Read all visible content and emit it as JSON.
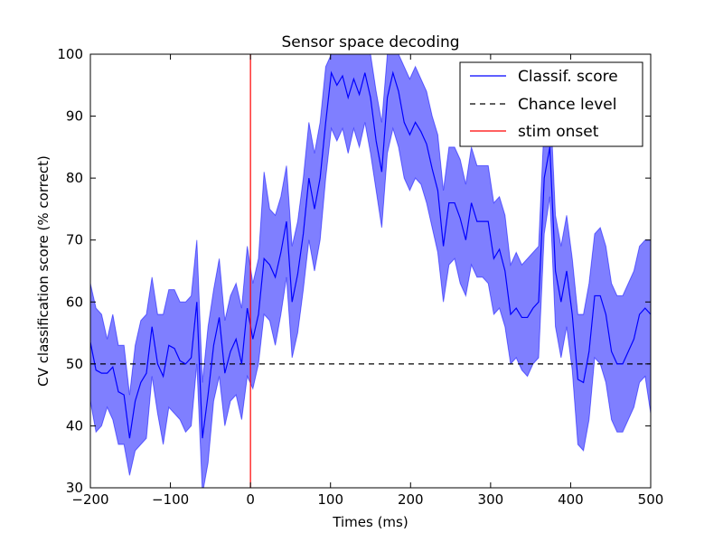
{
  "chart_data": {
    "type": "line",
    "title": "Sensor space decoding",
    "xlabel": "Times (ms)",
    "ylabel": "CV classification score (% correct)",
    "xlim": [
      -200,
      500
    ],
    "ylim": [
      30,
      100
    ],
    "xticks": [
      -200,
      -100,
      0,
      100,
      200,
      300,
      400,
      500
    ],
    "yticks": [
      30,
      40,
      50,
      60,
      70,
      80,
      90,
      100
    ],
    "xtick_labels": [
      "−200",
      "−100",
      "0",
      "100",
      "200",
      "300",
      "400",
      "500"
    ],
    "ytick_labels": [
      "30",
      "40",
      "50",
      "60",
      "70",
      "80",
      "90",
      "100"
    ],
    "grid": false,
    "legend_position": "top-right",
    "legend": [
      "Classif. score",
      "Chance level",
      "stim onset"
    ],
    "colors": {
      "score_line": "#0000ff",
      "band_fill": "#0000ff",
      "chance": "#000000",
      "stim": "#ff0000"
    },
    "series": [
      {
        "name": "Classif. score",
        "x": [
          -200,
          -193,
          -186,
          -179,
          -172,
          -165,
          -158,
          -151,
          -144,
          -137,
          -130,
          -123,
          -116,
          -109,
          -102,
          -95,
          -88,
          -81,
          -74,
          -67,
          -60,
          -53,
          -46,
          -39,
          -32,
          -25,
          -18,
          -11,
          -4,
          3,
          10,
          17,
          24,
          31,
          38,
          45,
          52,
          59,
          66,
          73,
          80,
          87,
          94,
          101,
          108,
          115,
          122,
          129,
          136,
          143,
          150,
          157,
          164,
          171,
          178,
          185,
          192,
          199,
          206,
          213,
          220,
          227,
          234,
          241,
          248,
          255,
          262,
          269,
          276,
          283,
          290,
          297,
          304,
          311,
          318,
          325,
          332,
          339,
          346,
          353,
          360,
          367,
          374,
          381,
          388,
          395,
          402,
          409,
          416,
          423,
          430,
          437,
          444,
          451,
          458,
          465,
          472,
          479,
          486,
          493,
          500
        ],
        "y": [
          53.5,
          49,
          48.5,
          48.5,
          49.5,
          45.5,
          45,
          38,
          44,
          47,
          48.5,
          56,
          50,
          48,
          53,
          52.5,
          50.5,
          50,
          51,
          60,
          38,
          45,
          53,
          57.5,
          48.5,
          52,
          54,
          50,
          59,
          54,
          58,
          67,
          66,
          64,
          68,
          73,
          60,
          64.5,
          71,
          80,
          75,
          80,
          89,
          97,
          95,
          96.5,
          93,
          96,
          93.5,
          97,
          93,
          86,
          81,
          93,
          97,
          94,
          89,
          87,
          89,
          87.5,
          85.5,
          81.5,
          78,
          69,
          76,
          76,
          73.5,
          70,
          76,
          73,
          73,
          73,
          67,
          68.5,
          65,
          58,
          59,
          57.5,
          57.5,
          59,
          60,
          80,
          85,
          65,
          60,
          65,
          58,
          47.5,
          47,
          52,
          61,
          61,
          58,
          52,
          50,
          50,
          52,
          54,
          58,
          59,
          58
        ]
      },
      {
        "name": "Chance level",
        "value": 50
      },
      {
        "name": "stim onset",
        "x": 0
      }
    ],
    "band": {
      "x_ref": "Classif. score",
      "lower": [
        44,
        39,
        40,
        43,
        41,
        37,
        37,
        32,
        36,
        37,
        38,
        48,
        42,
        37,
        43,
        42,
        41,
        39,
        40,
        50,
        29,
        34,
        44,
        48,
        40,
        44,
        45,
        41,
        48,
        46,
        50,
        58,
        57,
        53,
        58,
        64,
        51,
        55,
        62,
        70,
        65,
        70,
        80,
        88,
        86,
        88,
        84,
        88,
        85,
        89,
        84,
        78,
        72,
        84,
        88,
        85,
        80,
        78,
        80,
        79,
        76,
        72,
        68,
        60,
        66,
        67,
        63,
        61,
        66,
        64,
        64,
        63,
        58,
        59,
        56,
        50,
        51,
        49,
        48,
        50,
        51,
        71,
        77,
        56,
        51,
        56,
        49,
        37,
        36,
        41,
        51,
        50,
        47,
        41,
        39,
        39,
        41,
        43,
        47,
        48,
        42
      ],
      "upper": [
        63,
        59,
        58,
        54,
        58,
        53,
        53,
        45,
        53,
        57,
        58,
        64,
        58,
        58,
        62,
        62,
        60,
        60,
        61,
        70,
        47,
        56,
        62,
        67,
        57,
        61,
        63,
        59,
        69,
        63,
        67,
        81,
        75,
        74,
        77,
        82,
        69,
        73,
        80,
        89,
        84,
        89,
        98,
        100,
        100,
        100,
        100,
        100,
        100,
        100,
        100,
        94,
        89,
        100,
        100,
        100,
        98,
        96,
        98,
        96,
        94,
        90,
        87,
        78,
        85,
        85,
        83,
        79,
        85,
        82,
        82,
        82,
        76,
        77,
        74,
        66,
        68,
        66,
        67,
        68,
        69,
        89,
        94,
        74,
        69,
        74,
        67,
        58,
        58,
        63,
        71,
        72,
        69,
        63,
        61,
        61,
        63,
        65,
        69,
        70,
        70
      ]
    }
  }
}
